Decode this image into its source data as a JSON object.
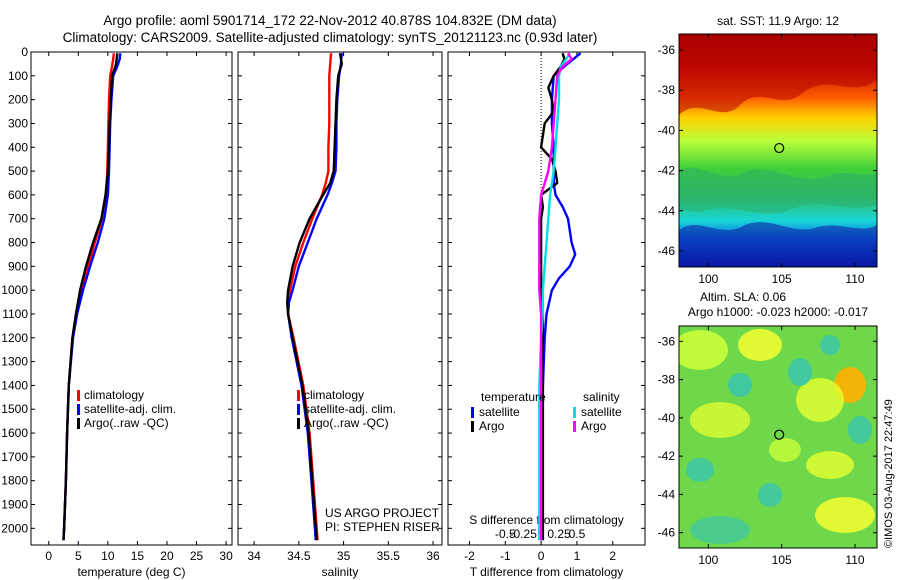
{
  "header": {
    "line1": "Argo profile: aoml 5901714_172 22-Nov-2012 40.878S 104.832E (DM data)",
    "line2": "Climatology: CARS2009. Satellite-adjusted climatology: synTS_20121123.nc (0.93d later)"
  },
  "project": {
    "line1": "US ARGO PROJECT",
    "line2": "PI: STEPHEN RISER"
  },
  "stamp": "©IMOS 03-Aug-2017 22:47:49",
  "colors": {
    "climatology": "#ff0000",
    "satellite": "#0000ff",
    "argo": "#000000",
    "sal_satellite": "#00e0e0",
    "sal_argo": "#ff00ff"
  },
  "chart_data": [
    {
      "type": "line",
      "xlabel": "temperature (deg C)",
      "ylabel": "",
      "xlim": [
        -3,
        31
      ],
      "ylim": [
        2070,
        0
      ],
      "xticks": [
        0,
        5,
        10,
        15,
        20,
        25,
        30
      ],
      "yticks": [
        0,
        100,
        200,
        300,
        400,
        500,
        600,
        700,
        800,
        900,
        1000,
        1100,
        1200,
        1300,
        1400,
        1500,
        1600,
        1700,
        1800,
        1900,
        2000
      ],
      "legend": [
        "climatology",
        "satellite-adj. clim.",
        "Argo(..raw -QC)"
      ],
      "legend_position": "lower-right",
      "series": [
        {
          "name": "climatology",
          "color": "#ff0000",
          "y": [
            5,
            30,
            60,
            100,
            200,
            300,
            400,
            500,
            600,
            700,
            800,
            900,
            1000,
            1100,
            1200,
            1400,
            1600,
            1800,
            2000,
            2050
          ],
          "x": [
            11.0,
            10.9,
            10.7,
            10.4,
            10.2,
            10.1,
            10.0,
            9.9,
            9.7,
            9.0,
            7.8,
            6.7,
            5.6,
            4.7,
            4.0,
            3.4,
            3.1,
            2.9,
            2.6,
            2.5
          ]
        },
        {
          "name": "satellite-adj. clim.",
          "color": "#0000ff",
          "y": [
            5,
            30,
            60,
            100,
            200,
            300,
            400,
            500,
            600,
            700,
            800,
            900,
            1000,
            1100,
            1200,
            1400,
            1600,
            1800,
            2000,
            2050
          ],
          "x": [
            12.1,
            12.0,
            11.6,
            10.9,
            10.6,
            10.4,
            10.3,
            10.2,
            10.0,
            9.4,
            8.3,
            7.0,
            5.8,
            4.8,
            4.1,
            3.4,
            3.1,
            2.9,
            2.6,
            2.5
          ]
        },
        {
          "name": "Argo(..raw -QC)",
          "color": "#000000",
          "y": [
            5,
            30,
            60,
            100,
            200,
            300,
            400,
            500,
            600,
            700,
            800,
            900,
            1000,
            1100,
            1200,
            1400,
            1600,
            1800,
            2000,
            2050
          ],
          "x": [
            11.6,
            11.5,
            11.3,
            10.7,
            10.5,
            10.3,
            10.2,
            10.0,
            9.6,
            8.9,
            7.5,
            6.3,
            5.3,
            4.6,
            4.0,
            3.4,
            3.1,
            2.9,
            2.6,
            2.5
          ]
        }
      ]
    },
    {
      "type": "line",
      "xlabel": "salinity",
      "ylabel": "",
      "xlim": [
        33.82,
        36.1
      ],
      "ylim": [
        2070,
        0
      ],
      "xticks": [
        34,
        34.5,
        35,
        35.5,
        36
      ],
      "legend": [
        "climatology",
        "satellite-adj. clim.",
        "Argo(..raw -QC)"
      ],
      "legend_position": "lower-right",
      "series": [
        {
          "name": "climatology",
          "color": "#ff0000",
          "y": [
            5,
            50,
            100,
            200,
            300,
            400,
            500,
            550,
            600,
            700,
            800,
            900,
            1000,
            1050,
            1100,
            1200,
            1400,
            1600,
            1800,
            2000,
            2050
          ],
          "x": [
            34.86,
            34.85,
            34.84,
            34.84,
            34.84,
            34.83,
            34.83,
            34.8,
            34.76,
            34.65,
            34.55,
            34.46,
            34.4,
            34.38,
            34.38,
            34.44,
            34.55,
            34.62,
            34.66,
            34.7,
            34.71
          ]
        },
        {
          "name": "satellite-adj. clim.",
          "color": "#0000ff",
          "y": [
            5,
            50,
            100,
            200,
            300,
            400,
            500,
            550,
            600,
            700,
            800,
            900,
            1000,
            1050,
            1100,
            1200,
            1400,
            1600,
            1800,
            2000,
            2050
          ],
          "x": [
            34.98,
            34.97,
            34.95,
            34.93,
            34.92,
            34.92,
            34.91,
            34.87,
            34.82,
            34.7,
            34.6,
            34.5,
            34.43,
            34.39,
            34.38,
            34.42,
            34.53,
            34.6,
            34.64,
            34.68,
            34.69
          ]
        },
        {
          "name": "Argo(..raw -QC)",
          "color": "#000000",
          "y": [
            5,
            50,
            100,
            200,
            300,
            400,
            500,
            550,
            600,
            700,
            800,
            900,
            1000,
            1050,
            1100,
            1200,
            1400,
            1600,
            1800,
            2000,
            2050
          ],
          "x": [
            34.96,
            34.98,
            34.94,
            34.92,
            34.91,
            34.9,
            34.89,
            34.85,
            34.77,
            34.62,
            34.51,
            34.43,
            34.38,
            34.37,
            34.38,
            34.43,
            34.54,
            34.61,
            34.65,
            34.69,
            34.7
          ]
        }
      ]
    },
    {
      "type": "line",
      "xlabel": "T difference from climatology",
      "secondary_xlabel": "S difference from climatology",
      "xlim": [
        -2.6,
        2.9
      ],
      "ylim": [
        2070,
        0
      ],
      "xticks": [
        -2,
        -1,
        0,
        1,
        2
      ],
      "secondary_xticks": [
        "-0.5",
        "-0.25",
        "0",
        "0.25",
        "0.5"
      ],
      "legend_titles": [
        "temperature",
        "salinity"
      ],
      "legend_position": "lower-center",
      "series": [
        {
          "name": "satellite",
          "group": "temperature",
          "color": "#0000ff",
          "y": [
            5,
            30,
            60,
            100,
            200,
            300,
            400,
            500,
            550,
            600,
            650,
            700,
            750,
            800,
            850,
            900,
            950,
            1000,
            1100,
            1200,
            1400,
            1600,
            1800,
            2000,
            2050
          ],
          "x": [
            1.1,
            0.9,
            0.65,
            0.35,
            0.3,
            0.3,
            0.35,
            0.35,
            0.35,
            0.4,
            0.6,
            0.75,
            0.8,
            0.85,
            0.95,
            0.8,
            0.5,
            0.3,
            0.15,
            0.1,
            0.05,
            0.0,
            0.0,
            0.0,
            0.0
          ]
        },
        {
          "name": "Argo",
          "group": "temperature",
          "color": "#000000",
          "y": [
            5,
            30,
            60,
            100,
            150,
            200,
            250,
            300,
            400,
            450,
            500,
            550,
            600,
            650,
            700,
            800,
            900,
            1000,
            1100,
            1200,
            1400,
            1600,
            1800,
            2000,
            2050
          ],
          "x": [
            0.6,
            0.65,
            0.55,
            0.35,
            0.2,
            0.3,
            0.35,
            0.1,
            0.0,
            0.3,
            0.4,
            0.45,
            0.0,
            0.05,
            0.0,
            0.0,
            0.0,
            0.0,
            0.05,
            0.05,
            0.05,
            0.05,
            0.05,
            0.05,
            0.05
          ]
        },
        {
          "name": "satellite",
          "group": "salinity",
          "color": "#00e0e0",
          "y": [
            5,
            30,
            60,
            100,
            200,
            300,
            400,
            500,
            600,
            700,
            800,
            900,
            1000,
            1100,
            1200,
            1400,
            1600,
            1800,
            2000,
            2050
          ],
          "x": [
            0.8,
            0.7,
            0.55,
            0.5,
            0.5,
            0.45,
            0.4,
            0.35,
            0.25,
            0.2,
            0.15,
            0.1,
            0.05,
            0.05,
            0.0,
            -0.05,
            -0.05,
            -0.05,
            -0.05,
            -0.05
          ]
        },
        {
          "name": "Argo",
          "group": "salinity",
          "color": "#ff00ff",
          "y": [
            5,
            30,
            60,
            100,
            200,
            300,
            400,
            500,
            600,
            700,
            800,
            900,
            1000,
            1100,
            1200,
            1400,
            1600,
            1800,
            2000,
            2050
          ],
          "x": [
            0.75,
            0.85,
            0.6,
            0.45,
            0.4,
            0.35,
            0.3,
            0.2,
            0.0,
            -0.05,
            -0.05,
            -0.05,
            -0.05,
            0.0,
            0.0,
            0.0,
            0.0,
            0.0,
            0.0,
            0.0
          ]
        }
      ]
    },
    {
      "type": "heatmap",
      "title": "sat. SST: 11.9 Argo: 12",
      "xlim": [
        98,
        111.5
      ],
      "ylim": [
        -46.8,
        -35.2
      ],
      "xticks": [
        100,
        105,
        110
      ],
      "yticks": [
        -36,
        -38,
        -40,
        -42,
        -44,
        -46
      ],
      "float_position": {
        "lon": 104.832,
        "lat": -40.878
      },
      "colormap": "jet"
    },
    {
      "type": "heatmap",
      "title_line1": "Altim. SLA: 0.06",
      "title_line2": "Argo h1000: -0.023 h2000: -0.017",
      "xlim": [
        98,
        111.5
      ],
      "ylim": [
        -46.8,
        -35.2
      ],
      "xticks": [
        100,
        105,
        110
      ],
      "yticks": [
        -36,
        -38,
        -40,
        -42,
        -44,
        -46
      ],
      "float_position": {
        "lon": 104.832,
        "lat": -40.878
      },
      "colormap": "jet"
    }
  ]
}
